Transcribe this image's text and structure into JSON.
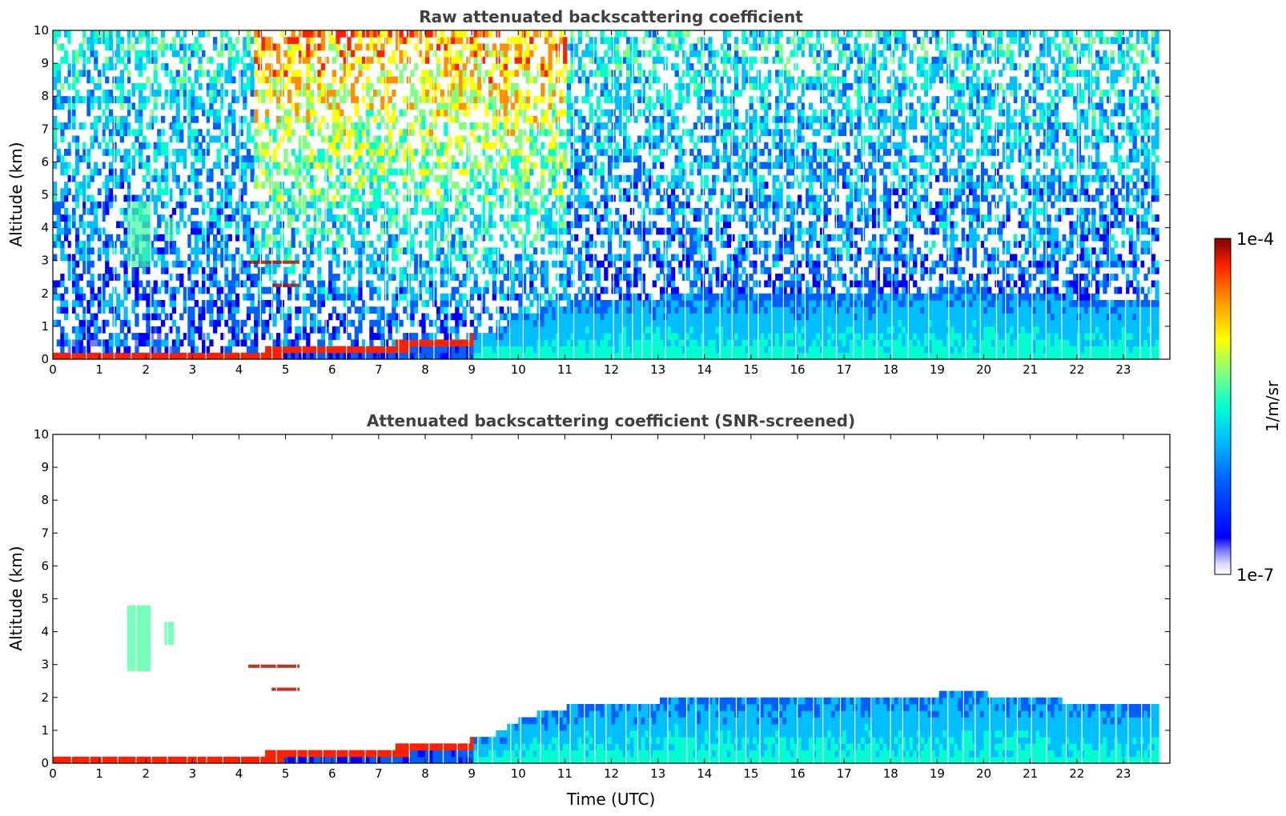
{
  "chart_data": [
    {
      "type": "heatmap",
      "title": "Raw attenuated backscattering coefficient",
      "xlabel": "",
      "ylabel": "Altitude (km)",
      "xlim": [
        0,
        24
      ],
      "ylim": [
        0,
        10
      ],
      "xticks": [
        "0",
        "1",
        "2",
        "3",
        "4",
        "5",
        "6",
        "7",
        "8",
        "9",
        "10",
        "11",
        "12",
        "13",
        "14",
        "15",
        "16",
        "17",
        "18",
        "19",
        "20",
        "21",
        "22",
        "23"
      ],
      "yticks": [
        "0",
        "1",
        "2",
        "3",
        "4",
        "5",
        "6",
        "7",
        "8",
        "9",
        "10"
      ],
      "data_end_hour": 23.75,
      "features": [
        {
          "name": "boundary layer top",
          "hours": [
            0,
            1,
            2,
            3,
            4,
            4.5,
            5.4,
            6,
            7,
            8,
            8.9,
            9.5,
            10,
            10.5,
            11,
            12,
            13,
            13.5,
            14,
            15,
            16,
            17,
            18,
            19,
            20,
            21,
            22,
            23.75
          ],
          "km": [
            0.2,
            0.15,
            0.2,
            0.2,
            0.15,
            0.2,
            0.3,
            0.35,
            0.35,
            0.5,
            0.6,
            0.8,
            1.2,
            1.5,
            1.6,
            1.7,
            1.8,
            2.0,
            1.9,
            1.8,
            1.8,
            1.9,
            1.95,
            2.0,
            2.0,
            1.95,
            1.7,
            1.7
          ]
        },
        {
          "name": "elevated aerosol layer",
          "hours": [
            4.2,
            5.3
          ],
          "km": [
            2.9,
            3.0
          ]
        },
        {
          "name": "elevated aerosol layer",
          "hours": [
            4.7,
            5.3
          ],
          "km": [
            2.2,
            2.3
          ]
        },
        {
          "name": "cloud",
          "hours": [
            1.6,
            2.1
          ],
          "km": [
            2.8,
            4.8
          ]
        },
        {
          "name": "cloud",
          "hours": [
            2.4,
            2.6
          ],
          "km": [
            3.6,
            4.3
          ]
        }
      ]
    },
    {
      "type": "heatmap",
      "title": "Attenuated backscattering coefficient (SNR-screened)",
      "xlabel": "Time (UTC)",
      "ylabel": "Altitude (km)",
      "xlim": [
        0,
        24
      ],
      "ylim": [
        0,
        10
      ],
      "xticks": [
        "0",
        "1",
        "2",
        "3",
        "4",
        "5",
        "6",
        "7",
        "8",
        "9",
        "10",
        "11",
        "12",
        "13",
        "14",
        "15",
        "16",
        "17",
        "18",
        "19",
        "20",
        "21",
        "22",
        "23"
      ],
      "yticks": [
        "0",
        "1",
        "2",
        "3",
        "4",
        "5",
        "6",
        "7",
        "8",
        "9",
        "10"
      ],
      "data_end_hour": 23.75
    }
  ],
  "colorbar": {
    "label": "1/m/sr",
    "max_label": "1e-4",
    "min_label": "1e-7",
    "colormap": [
      "#ffffff",
      "#dcdcff",
      "#7b7bff",
      "#0000ff",
      "#0060ff",
      "#00bfff",
      "#00ffd0",
      "#80ff80",
      "#ffff00",
      "#ff9000",
      "#ff2000",
      "#800000"
    ]
  }
}
